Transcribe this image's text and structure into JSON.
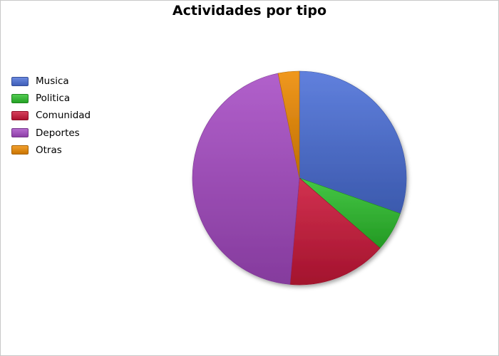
{
  "chart_data": {
    "type": "pie",
    "title": "Actividades por tipo",
    "legend_position": "left",
    "categories": [
      "Musica",
      "Politica",
      "Comunidad",
      "Deportes",
      "Otras"
    ],
    "values": [
      30.4,
      6.0,
      15.0,
      45.4,
      3.2
    ],
    "unit": "percent",
    "colors": [
      "#4a6fd8",
      "#2cbf2c",
      "#cc1638",
      "#a64ac4",
      "#ee8a00"
    ]
  }
}
